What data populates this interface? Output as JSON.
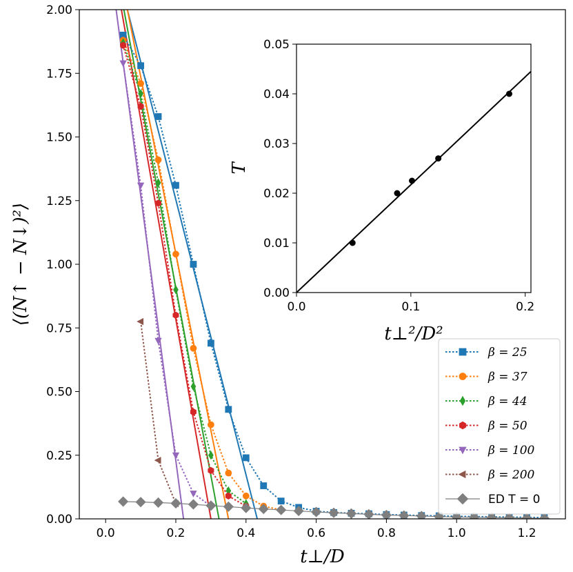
{
  "chart_data": [
    {
      "type": "line",
      "name": "main",
      "xlabel": "t⊥/D",
      "ylabel": "⟨(N↑ − N↓)²⟩",
      "xlim": [
        -0.075,
        1.31
      ],
      "ylim": [
        0,
        2.0
      ],
      "xticks": [
        "0.0",
        "0.2",
        "0.4",
        "0.6",
        "0.8",
        "1.0",
        "1.2"
      ],
      "yticks": [
        "0.00",
        "0.25",
        "0.50",
        "0.75",
        "1.00",
        "1.25",
        "1.50",
        "1.75",
        "2.00"
      ],
      "legend_position": "bottom-right",
      "series": [
        {
          "name": "β = 25",
          "color": "#1f77b4",
          "marker": "square",
          "x": [
            0.05,
            0.1,
            0.15,
            0.2,
            0.25,
            0.3,
            0.35,
            0.4,
            0.45,
            0.5,
            0.55,
            0.6,
            0.65,
            0.7,
            0.75,
            0.8,
            0.85,
            0.9,
            0.95,
            1.0,
            1.05,
            1.1,
            1.15,
            1.2,
            1.25
          ],
          "y": [
            1.9,
            1.78,
            1.58,
            1.31,
            1.0,
            0.69,
            0.43,
            0.24,
            0.13,
            0.07,
            0.045,
            0.03,
            0.025,
            0.022,
            0.02,
            0.017,
            0.015,
            0.013,
            0.012,
            0.01,
            0.009,
            0.008,
            0.007,
            0.006,
            0.005
          ],
          "fit": [
            [
              0.062,
              2.0
            ],
            [
              0.432,
              0.0
            ]
          ]
        },
        {
          "name": "β = 37",
          "color": "#ff7f0e",
          "marker": "circle",
          "x": [
            0.05,
            0.1,
            0.15,
            0.2,
            0.25,
            0.3,
            0.35,
            0.4,
            0.45,
            0.5
          ],
          "y": [
            1.88,
            1.71,
            1.41,
            1.04,
            0.67,
            0.37,
            0.18,
            0.09,
            0.05,
            0.035
          ],
          "fit": [
            [
              0.062,
              2.0
            ],
            [
              0.35,
              0.0
            ]
          ]
        },
        {
          "name": "β = 44",
          "color": "#2ca02c",
          "marker": "diamond",
          "x": [
            0.05,
            0.1,
            0.15,
            0.2,
            0.25,
            0.3,
            0.35,
            0.4
          ],
          "y": [
            1.87,
            1.67,
            1.32,
            0.9,
            0.52,
            0.25,
            0.11,
            0.06
          ],
          "fit": [
            [
              0.052,
              2.0
            ],
            [
              0.323,
              0.0
            ]
          ]
        },
        {
          "name": "β = 50",
          "color": "#d62728",
          "marker": "hexagon",
          "x": [
            0.05,
            0.1,
            0.15,
            0.2,
            0.25,
            0.3,
            0.35,
            0.4
          ],
          "y": [
            1.86,
            1.62,
            1.24,
            0.8,
            0.42,
            0.19,
            0.09,
            0.05
          ],
          "fit": [
            [
              0.045,
              2.0
            ],
            [
              0.3,
              0.0
            ]
          ]
        },
        {
          "name": "β = 100",
          "color": "#9467bd",
          "marker": "triangle-down",
          "x": [
            0.05,
            0.1,
            0.15,
            0.2,
            0.25,
            0.3
          ],
          "y": [
            1.79,
            1.31,
            0.7,
            0.25,
            0.1,
            0.05
          ],
          "fit": [
            [
              0.03,
              2.0
            ],
            [
              0.222,
              0.0
            ]
          ]
        },
        {
          "name": "β = 200",
          "color": "#8c564b",
          "marker": "triangle-left",
          "x": [
            0.1,
            0.15,
            0.2
          ],
          "y": [
            0.775,
            0.23,
            0.06
          ]
        },
        {
          "name": "ED T = 0",
          "color": "#7f7f7f",
          "marker": "diamond-large",
          "x": [
            0.05,
            0.1,
            0.15,
            0.2,
            0.25,
            0.3,
            0.35,
            0.4,
            0.45,
            0.5,
            0.55,
            0.6,
            0.65,
            0.7,
            0.75,
            0.8,
            0.85,
            0.9,
            0.95,
            1.0,
            1.05,
            1.1,
            1.15,
            1.2,
            1.25
          ],
          "y": [
            0.068,
            0.066,
            0.064,
            0.061,
            0.057,
            0.052,
            0.048,
            0.043,
            0.039,
            0.035,
            0.031,
            0.027,
            0.024,
            0.021,
            0.018,
            0.015,
            0.013,
            0.011,
            0.009,
            0.007,
            0.006,
            0.005,
            0.004,
            0.003,
            0.002
          ]
        }
      ]
    },
    {
      "type": "scatter",
      "name": "inset",
      "xlabel": "t⊥²/D²",
      "ylabel": "T",
      "xlim": [
        0.0,
        0.205
      ],
      "ylim": [
        0.0,
        0.05
      ],
      "xticks": [
        "0.0",
        "0.1",
        "0.2"
      ],
      "yticks": [
        "0.00",
        "0.01",
        "0.02",
        "0.03",
        "0.04",
        "0.05"
      ],
      "points": {
        "x": [
          0.049,
          0.088,
          0.101,
          0.124,
          0.186
        ],
        "y": [
          0.01,
          0.02,
          0.0225,
          0.027,
          0.04
        ]
      },
      "fit_line": [
        [
          0.0,
          0.0
        ],
        [
          0.205,
          0.0445
        ]
      ]
    }
  ]
}
